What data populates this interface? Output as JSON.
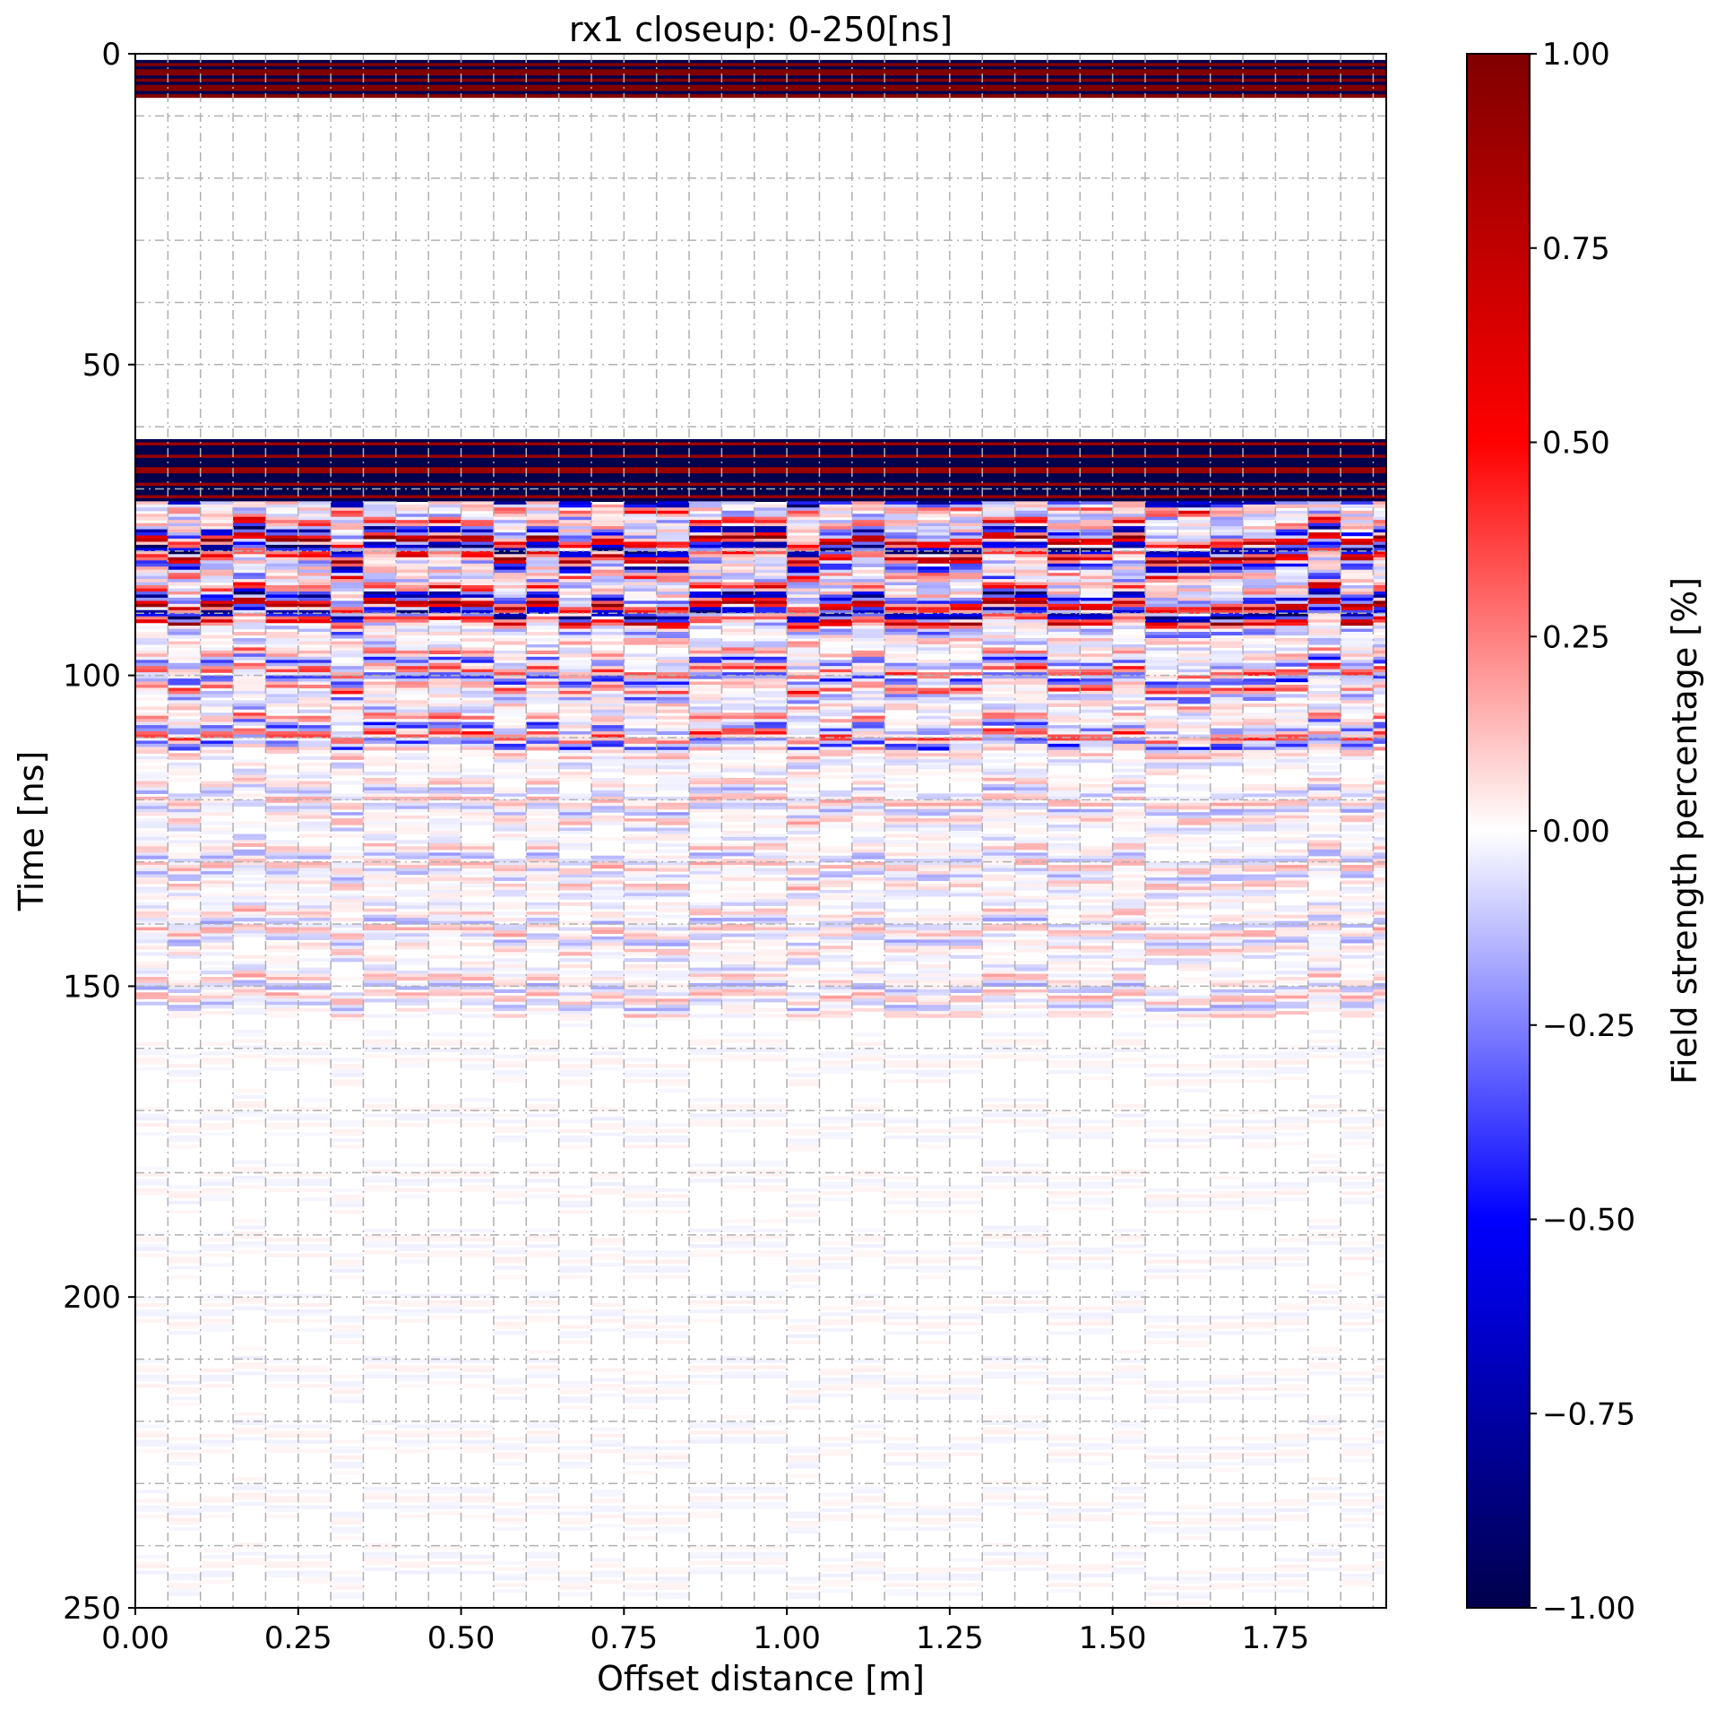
{
  "chart_data": {
    "type": "heatmap",
    "title": "rx1 closeup: 0-250[ns]",
    "xlabel": "Offset distance [m]",
    "ylabel": "Time [ns]",
    "xlim": [
      0.0,
      1.92
    ],
    "ylim": [
      250,
      0
    ],
    "y_inverted": true,
    "x_ticks": [
      "0.00",
      "0.25",
      "0.50",
      "0.75",
      "1.00",
      "1.25",
      "1.50",
      "1.75"
    ],
    "x_tick_values": [
      0.0,
      0.25,
      0.5,
      0.75,
      1.0,
      1.25,
      1.5,
      1.75
    ],
    "y_ticks": [
      "0",
      "50",
      "100",
      "150",
      "200",
      "250"
    ],
    "y_tick_values": [
      0,
      50,
      100,
      150,
      200,
      250
    ],
    "grid": true,
    "grid_style": "dashdot",
    "x_grid_step": 0.05,
    "y_grid_step": 10,
    "colormap": "seismic",
    "colorbar": {
      "label": "Field strength percentage [%]",
      "vmin": -1.0,
      "vmax": 1.0,
      "ticks": [
        "1.00",
        "0.75",
        "0.50",
        "0.25",
        "0.00",
        "−0.25",
        "−0.50",
        "−0.75",
        "−1.00"
      ],
      "tick_values": [
        1.0,
        0.75,
        0.5,
        0.25,
        0.0,
        -0.25,
        -0.5,
        -0.75,
        -1.0
      ],
      "colors": [
        "#00004c",
        "#0000ff",
        "#ffffff",
        "#ff0000",
        "#800000"
      ]
    },
    "bands": [
      {
        "t_start": 1,
        "t_end": 7,
        "amplitude": 1.0,
        "description": "direct wave, saturated alternating red/blue"
      },
      {
        "t_start": 62,
        "t_end": 72,
        "amplitude": 1.0,
        "description": "strong reflection, saturated"
      },
      {
        "t_start": 72,
        "t_end": 92,
        "amplitude": 0.9,
        "description": "strong reflections, lateral variation"
      },
      {
        "t_start": 92,
        "t_end": 112,
        "amplitude": 0.45,
        "description": "moderate reflections"
      },
      {
        "t_start": 112,
        "t_end": 155,
        "amplitude": 0.18,
        "description": "weak reflections"
      },
      {
        "t_start": 155,
        "t_end": 250,
        "amplitude": 0.03,
        "description": "near zero"
      }
    ],
    "trace_spacing": 0.05
  }
}
